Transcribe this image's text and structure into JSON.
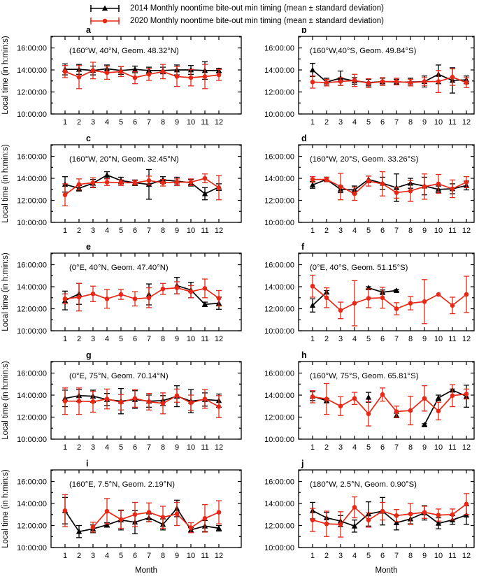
{
  "figure": {
    "background": "#ffffff"
  },
  "legend": {
    "items": [
      {
        "name": "2014",
        "label": "2014 Monthly noontime bite-out min timing (mean ± standard deviation)",
        "color": "#000000",
        "marker": "triangle",
        "icon": "errorbar-triangle-icon"
      },
      {
        "name": "2020",
        "label": "2020 Monthly noontime bite-out min timing (mean ± standard deviation)",
        "color": "#e82817",
        "marker": "circle",
        "icon": "errorbar-circle-icon"
      }
    ]
  },
  "chart_data": {
    "type": "line",
    "x": [
      1,
      2,
      3,
      4,
      5,
      6,
      7,
      8,
      9,
      10,
      11,
      12
    ],
    "xlabel": "Month",
    "ylabel": "Local time (in h:min:s)",
    "ylim": [
      10,
      17.05
    ],
    "xlim": [
      0,
      13.6
    ],
    "grid": false,
    "legend_position": "top",
    "y_ticks": [
      {
        "value": 10,
        "label": "10:00:00"
      },
      {
        "value": 12,
        "label": "12:00:00"
      },
      {
        "value": 14,
        "label": "14:00:00"
      },
      {
        "value": 16,
        "label": "16:00:00"
      }
    ],
    "y_minor_ticks": [
      11,
      13,
      15,
      17
    ],
    "panels": [
      {
        "id": "a",
        "annotation": "(160°W, 40°N, Geom. 48.32°N)",
        "series": [
          {
            "name": "2014",
            "y": [
              14.05,
              14.05,
              13.95,
              14.1,
              13.95,
              14.05,
              13.95,
              13.95,
              14.0,
              14.0,
              13.95,
              13.95
            ],
            "err": [
              0.5,
              0.45,
              0.4,
              0.35,
              0.35,
              0.3,
              0.3,
              0.3,
              0.45,
              0.4,
              0.8,
              0.2
            ]
          },
          {
            "name": "2020",
            "y": [
              13.85,
              13.35,
              13.95,
              13.75,
              13.85,
              13.3,
              13.6,
              13.85,
              13.4,
              13.3,
              13.4,
              13.55
            ],
            "err": [
              0.55,
              1.05,
              0.75,
              0.6,
              0.45,
              0.55,
              0.55,
              0.65,
              0.9,
              0.75,
              1.1,
              0.5
            ]
          }
        ]
      },
      {
        "id": "b",
        "annotation": "(160°W,40°S, Geom. 49.84°S)",
        "series": [
          {
            "name": "2014",
            "y": [
              14.0,
              12.9,
              13.25,
              13.0,
              12.85,
              12.95,
              12.9,
              12.9,
              12.95,
              13.6,
              13.05,
              13.1
            ],
            "err": [
              0.6,
              0.35,
              0.65,
              0.3,
              0.3,
              0.3,
              0.25,
              0.35,
              0.5,
              0.85,
              1.15,
              0.35
            ]
          },
          {
            "name": "2020",
            "y": [
              12.9,
              12.85,
              12.95,
              13.05,
              12.8,
              12.95,
              12.95,
              12.85,
              12.95,
              12.95,
              13.35,
              12.85
            ],
            "err": [
              0.55,
              0.3,
              0.35,
              0.55,
              0.4,
              0.35,
              0.3,
              0.3,
              0.35,
              1.0,
              0.75,
              0.45
            ]
          }
        ]
      },
      {
        "id": "c",
        "annotation": "(160°W, 20°N, Geom. 32.45°N)",
        "series": [
          {
            "name": "2014",
            "y": [
              13.45,
              13.1,
              13.55,
              14.3,
              13.8,
              13.6,
              13.45,
              13.85,
              13.75,
              13.6,
              12.6,
              13.2
            ],
            "err": [
              0.7,
              0.25,
              0.35,
              0.3,
              0.3,
              0.25,
              1.35,
              0.3,
              0.35,
              0.3,
              0.55,
              0.3
            ]
          },
          {
            "name": "2020",
            "y": [
              12.5,
              13.45,
              13.6,
              13.65,
              13.6,
              13.6,
              13.8,
              13.6,
              13.65,
              13.65,
              14.0,
              13.15
            ],
            "err": [
              1.0,
              0.5,
              0.45,
              0.3,
              0.25,
              0.2,
              0.4,
              0.3,
              0.3,
              0.3,
              0.4,
              1.1
            ]
          }
        ]
      },
      {
        "id": "d",
        "annotation": "(160°W, 20°S, Geom. 33.26°S)",
        "series": [
          {
            "name": "2014",
            "y": [
              13.4,
              13.9,
              13.0,
              12.95,
              13.9,
              13.55,
              13.15,
              13.55,
              13.3,
              13.0,
              13.05,
              13.35
            ],
            "err": [
              0.3,
              0.2,
              0.3,
              0.35,
              0.3,
              0.55,
              1.25,
              0.45,
              0.8,
              0.3,
              0.45,
              0.4
            ]
          },
          {
            "name": "2020",
            "y": [
              13.9,
              13.9,
              13.25,
              12.6,
              13.75,
              13.5,
              12.7,
              12.85,
              13.25,
              13.5,
              13.05,
              13.65
            ],
            "err": [
              0.25,
              0.2,
              1.2,
              0.6,
              0.45,
              1.1,
              0.5,
              0.95,
              1.15,
              0.85,
              0.8,
              0.5
            ]
          }
        ]
      },
      {
        "id": "e",
        "annotation": "(0°E, 40°N, Geom. 47.40°N)",
        "series": [
          {
            "name": "2014",
            "y": [
              12.75,
              13.35,
              null,
              null,
              null,
              null,
              13.3,
              null,
              14.1,
              13.7,
              12.4,
              12.5
            ],
            "err": [
              0.85,
              0.95,
              null,
              null,
              null,
              null,
              0.95,
              null,
              0.75,
              0.7,
              0.2,
              0.55
            ]
          },
          {
            "name": "2020",
            "y": [
              12.9,
              13.05,
              13.35,
              12.9,
              13.3,
              12.9,
              13.0,
              13.8,
              13.9,
              13.55,
              13.85,
              12.95
            ],
            "err": [
              0.45,
              1.25,
              0.7,
              0.85,
              0.45,
              0.65,
              0.9,
              0.5,
              0.55,
              0.55,
              0.85,
              0.7
            ]
          }
        ]
      },
      {
        "id": "f",
        "annotation": "(0°E, 40°S, Geom. 51.15°S)",
        "series": [
          {
            "name": "2014",
            "y": [
              12.3,
              13.5,
              null,
              null,
              13.9,
              13.5,
              13.65,
              null,
              null,
              null,
              null,
              null
            ],
            "err": [
              0.6,
              0.15,
              null,
              null,
              0.1,
              0.2,
              0.1,
              null,
              null,
              null,
              null,
              null
            ]
          },
          {
            "name": "2020",
            "y": [
              14.05,
              13.0,
              11.85,
              12.5,
              12.95,
              13.0,
              12.0,
              12.5,
              12.65,
              13.3,
              12.3,
              13.3
            ],
            "err": [
              1.0,
              0.9,
              0.75,
              2.05,
              0.85,
              0.95,
              0.55,
              0.6,
              2.0,
              0,
              0.75,
              1.65
            ]
          }
        ]
      },
      {
        "id": "g",
        "annotation": "(0°E, 75°N, Geom. 70.14°N)",
        "series": [
          {
            "name": "2014",
            "y": [
              13.7,
              13.95,
              13.9,
              13.6,
              13.45,
              13.6,
              13.45,
              13.5,
              13.9,
              13.45,
              13.6,
              13.5
            ],
            "err": [
              0.75,
              0.55,
              0.55,
              0.55,
              1.15,
              0.8,
              0.55,
              0.45,
              0.95,
              1.05,
              0.6,
              0.6
            ]
          },
          {
            "name": "2020",
            "y": [
              13.45,
              13.45,
              13.4,
              13.65,
              13.35,
              13.7,
              13.4,
              13.25,
              13.95,
              13.3,
              13.65,
              12.95
            ],
            "err": [
              1.2,
              1.2,
              0.95,
              0.9,
              0.7,
              0.8,
              0.75,
              0.95,
              0.6,
              0.7,
              0.85,
              1.0
            ]
          }
        ]
      },
      {
        "id": "h",
        "annotation": "(160°W, 75°S, Geom. 65.81°S)",
        "series": [
          {
            "name": "2014",
            "y": [
              13.9,
              13.5,
              null,
              null,
              13.8,
              null,
              12.15,
              null,
              11.3,
              13.75,
              14.45,
              13.9
            ],
            "err": [
              0.4,
              0.2,
              null,
              null,
              0.45,
              null,
              0.2,
              null,
              0.1,
              0.25,
              0.1,
              1.0
            ]
          },
          {
            "name": "2020",
            "y": [
              13.85,
              13.65,
              13.0,
              13.7,
              12.3,
              14.05,
              12.5,
              12.6,
              13.7,
              12.55,
              13.95,
              14.1
            ],
            "err": [
              0.55,
              1.4,
              0.85,
              0.55,
              1.1,
              0.6,
              0.5,
              1.3,
              1.15,
              0.8,
              1.0,
              0.45
            ]
          }
        ]
      },
      {
        "id": "i",
        "annotation": "(160°E, 7.5°N, Geom. 2.19°N)",
        "series": [
          {
            "name": "2014",
            "y": [
              13.35,
              11.45,
              11.7,
              12.05,
              12.5,
              12.3,
              12.7,
              12.1,
              13.55,
              11.6,
              11.95,
              11.75
            ],
            "err": [
              1.2,
              0.55,
              0.35,
              0.2,
              0.9,
              1.05,
              0.35,
              0.5,
              0.75,
              0.2,
              0.5,
              0.25
            ]
          },
          {
            "name": "2020",
            "y": [
              13.35,
              null,
              11.85,
              13.3,
              12.55,
              13.0,
              13.2,
              12.75,
              13.05,
              11.8,
              12.65,
              13.2
            ],
            "err": [
              1.45,
              null,
              0.45,
              1.15,
              0.8,
              1.1,
              0.85,
              1.0,
              1.05,
              0.45,
              1.25,
              1.05
            ]
          }
        ]
      },
      {
        "id": "j",
        "annotation": "(180°W, 2.5°N, Geom. 0.90°S)",
        "series": [
          {
            "name": "2014",
            "y": [
              13.35,
              12.7,
              12.4,
              11.95,
              13.05,
              13.3,
              12.25,
              12.6,
              13.15,
              12.2,
              12.5,
              12.95
            ],
            "err": [
              0.75,
              0.5,
              0.5,
              0.55,
              1.1,
              1.25,
              0.65,
              0.45,
              0.65,
              0.5,
              0.4,
              0.85
            ]
          },
          {
            "name": "2020",
            "y": [
              12.5,
              12.15,
              12.1,
              13.65,
              12.5,
              13.3,
              12.9,
              13.05,
              13.2,
              12.95,
              13.0,
              13.95
            ],
            "err": [
              1.05,
              1.15,
              1.15,
              0.95,
              0.65,
              0.8,
              0.55,
              0.95,
              0.55,
              0.55,
              0.5,
              0.95
            ]
          }
        ]
      }
    ]
  }
}
